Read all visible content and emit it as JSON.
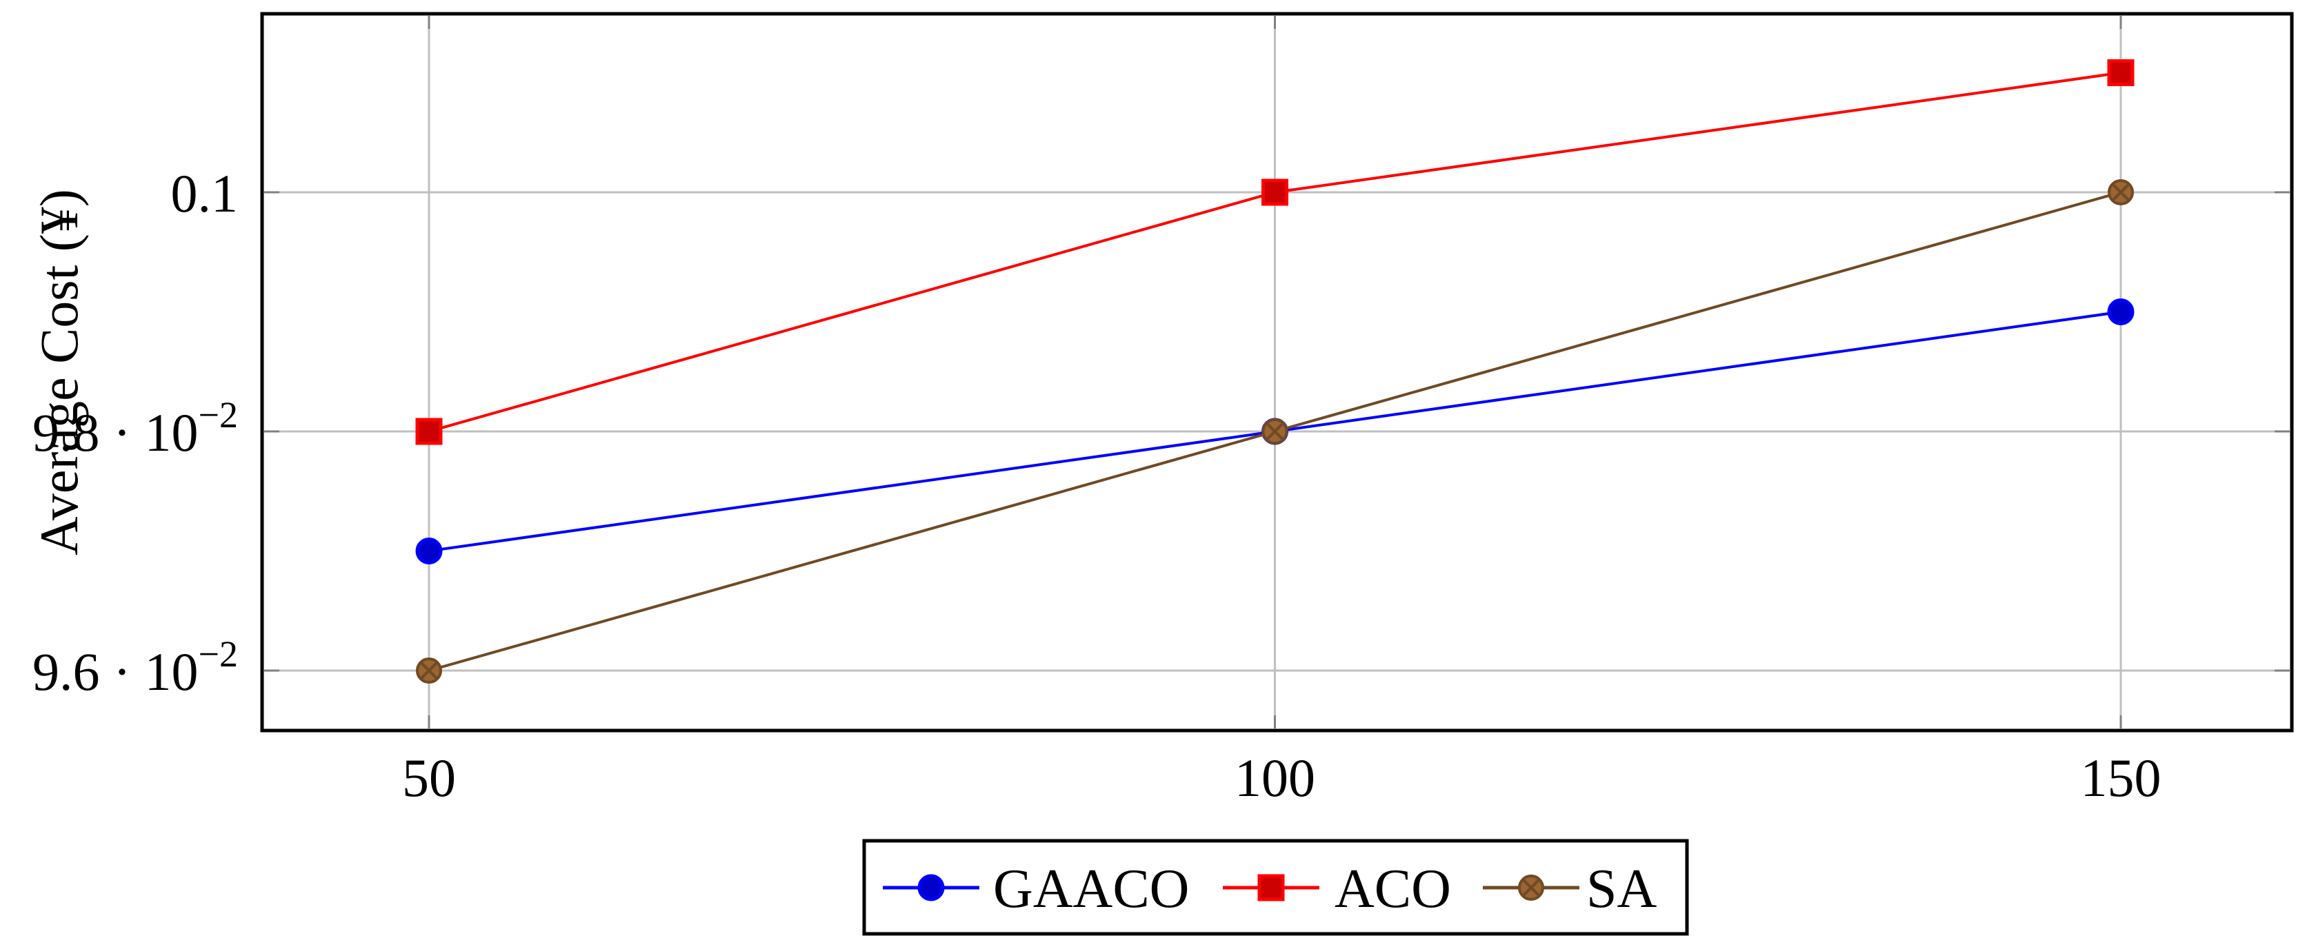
{
  "chart_data": {
    "type": "line",
    "title": "",
    "xlabel": "",
    "ylabel": "Average Cost (¥)",
    "x": [
      50,
      100,
      150
    ],
    "x_tick_labels": [
      "50",
      "100",
      "150"
    ],
    "y_ticks": [
      0.096,
      0.098,
      0.1
    ],
    "y_tick_labels": [
      {
        "mantissa": "9.6",
        "exponent": "−2"
      },
      {
        "mantissa": "9.8",
        "exponent": "−2"
      },
      {
        "plain": "0.1"
      }
    ],
    "ylim": [
      0.0955,
      0.1013
    ],
    "xlim": [
      40,
      160
    ],
    "grid": true,
    "legend_position": "bottom-center-outside",
    "series": [
      {
        "name": "GAACO",
        "color": "#0000ff",
        "fill": "#0000cc",
        "marker": "circle",
        "values": [
          0.097,
          0.098,
          0.099
        ]
      },
      {
        "name": "ACO",
        "color": "#ff0000",
        "fill": "#cc0000",
        "marker": "square",
        "values": [
          0.098,
          0.1,
          0.101
        ]
      },
      {
        "name": "SA",
        "color": "#704a24",
        "fill": "#9a6532",
        "marker": "circle-x",
        "values": [
          0.096,
          0.098,
          0.1
        ]
      }
    ]
  },
  "legend": {
    "items": [
      "GAACO",
      "ACO",
      "SA"
    ]
  }
}
